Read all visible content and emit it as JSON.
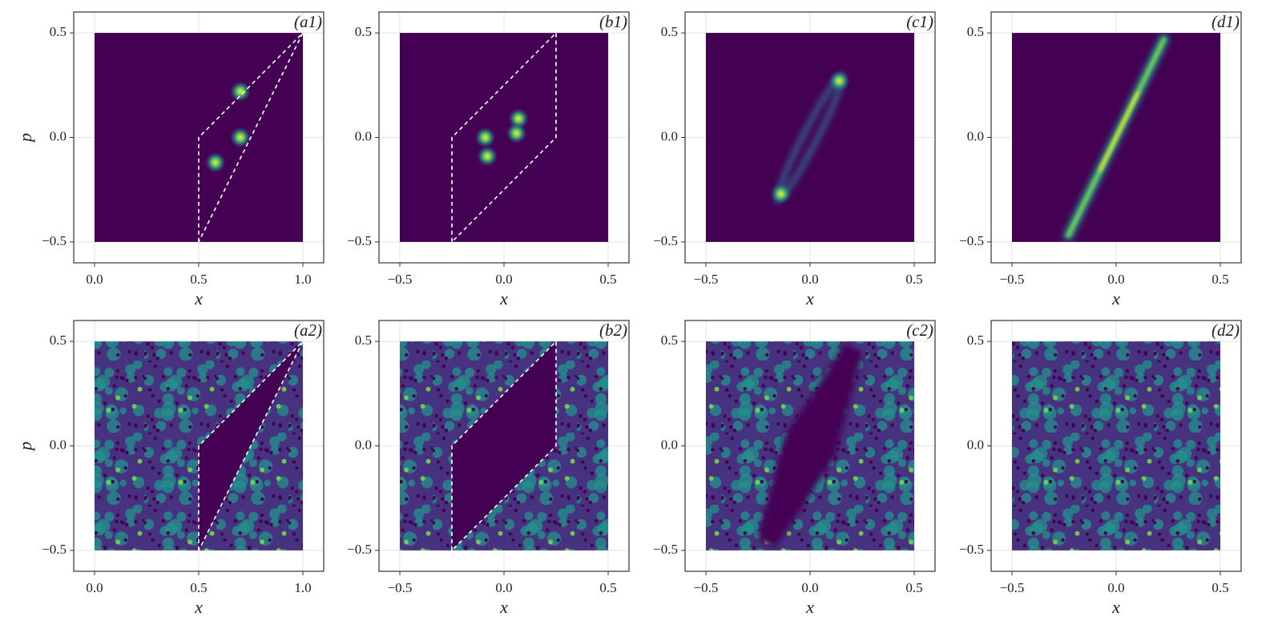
{
  "chart_data": [
    {
      "type": "heatmap",
      "tag": "(a1)",
      "xlabel": "x",
      "ylabel": "p",
      "color": "#440154",
      "xlim": [
        -0.1,
        1.1
      ],
      "ylim": [
        -0.6,
        0.6
      ],
      "xticks": [
        {
          "value": 0,
          "label": "0.0"
        },
        0.5,
        {
          "value": 1,
          "label": "1.0"
        }
      ],
      "yticks": [
        {
          "value": -0.5,
          "label": "−0.5"
        },
        {
          "value": 0,
          "label": "0.0"
        },
        0.5
      ],
      "image_x": [
        0,
        1
      ],
      "image_y": [
        -0.5,
        0.5
      ],
      "region": {
        "x": [
          0.5,
          0.5,
          1.0
        ],
        "y": [
          -0.5,
          0.0,
          0.5
        ]
      },
      "region_dashed": true,
      "region_filled": false,
      "peaks": {
        "x": [
          0.7,
          0.7,
          0.58
        ],
        "y": [
          0.22,
          0.0,
          -0.12
        ]
      }
    },
    {
      "type": "heatmap",
      "tag": "(b1)",
      "xlabel": "x",
      "color": "#440154",
      "xlim": [
        -0.6,
        0.6
      ],
      "ylim": [
        -0.6,
        0.6
      ],
      "xticks": [
        {
          "value": -0.5,
          "label": "−0.5"
        },
        {
          "value": 0,
          "label": "0.0"
        },
        0.5
      ],
      "yticks": [
        {
          "value": -0.5,
          "label": "−0.5"
        },
        {
          "value": 0,
          "label": "0.0"
        },
        0.5
      ],
      "image_x": [
        -0.5,
        0.5
      ],
      "image_y": [
        -0.5,
        0.5
      ],
      "region": {
        "x": [
          -0.25,
          -0.25,
          0.25,
          0.25
        ],
        "y": [
          -0.5,
          0.0,
          0.5,
          0.0
        ]
      },
      "region_dashed": true,
      "region_filled": false,
      "peaks": {
        "x": [
          -0.09,
          -0.08,
          0.07,
          0.06
        ],
        "y": [
          0.0,
          -0.09,
          0.09,
          0.02
        ]
      }
    },
    {
      "type": "heatmap",
      "tag": "(c1)",
      "xlabel": "x",
      "color": "#440154",
      "xlim": [
        -0.6,
        0.6
      ],
      "ylim": [
        -0.6,
        0.6
      ],
      "xticks": [
        {
          "value": -0.5,
          "label": "−0.5"
        },
        {
          "value": 0,
          "label": "0.0"
        },
        0.5
      ],
      "yticks": [
        {
          "value": -0.5,
          "label": "−0.5"
        },
        {
          "value": 0,
          "label": "0.0"
        },
        0.5
      ],
      "image_x": [
        -0.5,
        0.5
      ],
      "image_y": [
        -0.5,
        0.5
      ],
      "curve": {
        "x": [
          0.154,
          0.118,
          0.05,
          -0.031,
          -0.104,
          -0.149,
          -0.154,
          -0.118,
          -0.05,
          0.031,
          0.104,
          0.149,
          0.154
        ],
        "y": [
          0.297,
          0.265,
          0.163,
          0.016,
          -0.135,
          -0.249,
          -0.297,
          -0.265,
          -0.163,
          -0.016,
          0.135,
          0.249,
          0.297
        ]
      },
      "peaks": {
        "x": [
          0.14,
          -0.14
        ],
        "y": [
          0.27,
          -0.27
        ]
      }
    },
    {
      "type": "heatmap",
      "tag": "(d1)",
      "xlabel": "x",
      "color": "#440154",
      "xlim": [
        -0.6,
        0.6
      ],
      "ylim": [
        -0.6,
        0.6
      ],
      "xticks": [
        {
          "value": -0.5,
          "label": "−0.5"
        },
        {
          "value": 0,
          "label": "0.0"
        },
        0.5
      ],
      "yticks": [
        {
          "value": -0.5,
          "label": "−0.5"
        },
        {
          "value": 0,
          "label": "0.0"
        },
        0.5
      ],
      "image_x": [
        -0.5,
        0.5
      ],
      "image_y": [
        -0.5,
        0.5
      ],
      "curve": {
        "x": [
          -0.23,
          0,
          0.23
        ],
        "y": [
          -0.47,
          0,
          0.47
        ]
      },
      "curve_bright": true
    },
    {
      "type": "heatmap",
      "tag": "(a2)",
      "xlabel": "x",
      "ylabel": "p",
      "color": "#440154",
      "texture": "speckle",
      "xlim": [
        -0.1,
        1.1
      ],
      "ylim": [
        -0.6,
        0.6
      ],
      "xticks": [
        {
          "value": 0,
          "label": "0.0"
        },
        0.5,
        {
          "value": 1,
          "label": "1.0"
        }
      ],
      "yticks": [
        {
          "value": -0.5,
          "label": "−0.5"
        },
        {
          "value": 0,
          "label": "0.0"
        },
        0.5
      ],
      "image_x": [
        0,
        1
      ],
      "image_y": [
        -0.5,
        0.5
      ],
      "region": {
        "x": [
          0.5,
          0.5,
          1.0
        ],
        "y": [
          -0.5,
          0.0,
          0.5
        ]
      },
      "region_dashed": true,
      "region_filled": true
    },
    {
      "type": "heatmap",
      "tag": "(b2)",
      "xlabel": "x",
      "color": "#440154",
      "texture": "speckle",
      "xlim": [
        -0.6,
        0.6
      ],
      "ylim": [
        -0.6,
        0.6
      ],
      "xticks": [
        {
          "value": -0.5,
          "label": "−0.5"
        },
        {
          "value": 0,
          "label": "0.0"
        },
        0.5
      ],
      "yticks": [
        {
          "value": -0.5,
          "label": "−0.5"
        },
        {
          "value": 0,
          "label": "0.0"
        },
        0.5
      ],
      "image_x": [
        -0.5,
        0.5
      ],
      "image_y": [
        -0.5,
        0.5
      ],
      "region": {
        "x": [
          -0.25,
          -0.25,
          0.25,
          0.25
        ],
        "y": [
          -0.5,
          0.0,
          0.5,
          0.0
        ]
      },
      "region_dashed": true,
      "region_filled": true
    },
    {
      "type": "heatmap",
      "tag": "(c2)",
      "xlabel": "x",
      "color": "#440154",
      "texture": "speckle",
      "xlim": [
        -0.6,
        0.6
      ],
      "ylim": [
        -0.6,
        0.6
      ],
      "xticks": [
        {
          "value": -0.5,
          "label": "−0.5"
        },
        {
          "value": 0,
          "label": "0.0"
        },
        0.5
      ],
      "yticks": [
        {
          "value": -0.5,
          "label": "−0.5"
        },
        {
          "value": 0,
          "label": "0.0"
        },
        0.5
      ],
      "image_x": [
        -0.5,
        0.5
      ],
      "image_y": [
        -0.5,
        0.5
      ],
      "region": {
        "x": [
          -0.25,
          -0.17,
          0.12,
          0.25,
          0.17,
          -0.12
        ],
        "y": [
          -0.44,
          -0.49,
          -0.05,
          0.44,
          0.49,
          0.05
        ]
      },
      "region_dashed": false,
      "region_filled": true
    },
    {
      "type": "heatmap",
      "tag": "(d2)",
      "xlabel": "x",
      "color": "#440154",
      "texture": "speckle",
      "xlim": [
        -0.6,
        0.6
      ],
      "ylim": [
        -0.6,
        0.6
      ],
      "xticks": [
        {
          "value": -0.5,
          "label": "−0.5"
        },
        {
          "value": 0,
          "label": "0.0"
        },
        0.5
      ],
      "yticks": [
        {
          "value": -0.5,
          "label": "−0.5"
        },
        {
          "value": 0,
          "label": "0.0"
        },
        0.5
      ],
      "image_x": [
        -0.5,
        0.5
      ],
      "image_y": [
        -0.5,
        0.5
      ]
    }
  ]
}
